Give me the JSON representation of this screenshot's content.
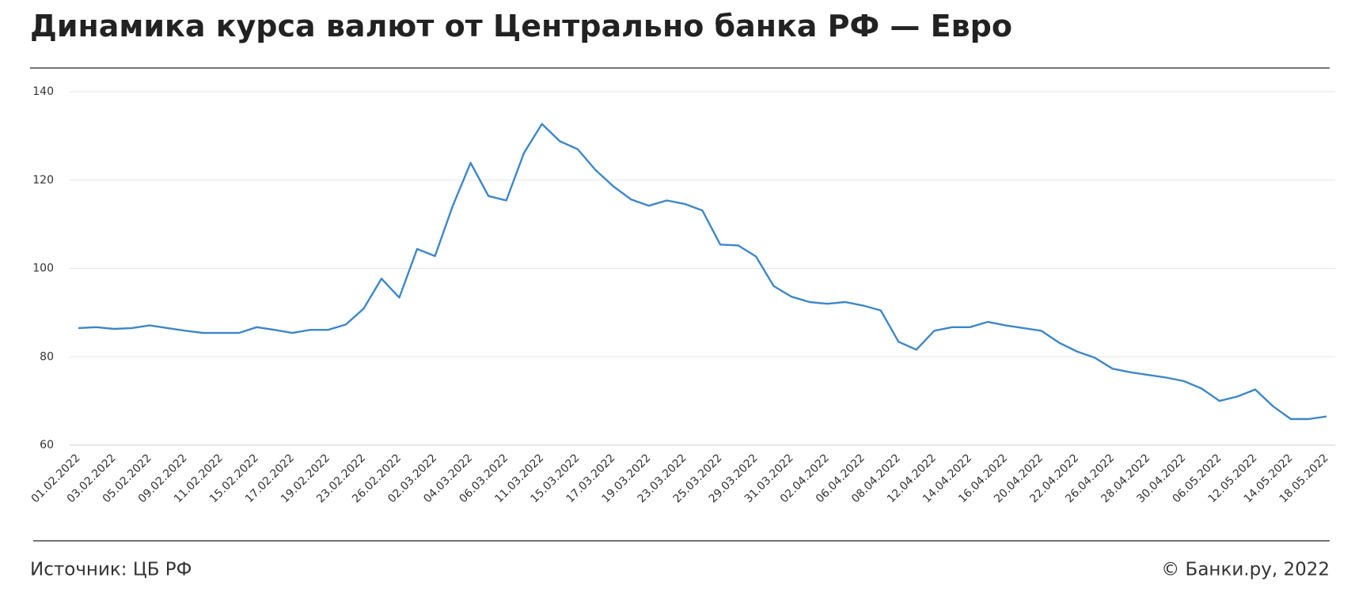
{
  "chart_data": {
    "type": "line",
    "title": "Динамика курса валют от Центрально банка РФ — Евро",
    "source": "Источник: ЦБ РФ",
    "credit": "© Банки.ру, 2022",
    "categories": [
      "01.02.2022",
      null,
      "03.02.2022",
      null,
      "05.02.2022",
      null,
      "09.02.2022",
      null,
      "11.02.2022",
      null,
      "15.02.2022",
      null,
      "17.02.2022",
      null,
      "19.02.2022",
      null,
      "23.02.2022",
      null,
      "26.02.2022",
      null,
      "02.03.2022",
      null,
      "04.03.2022",
      null,
      "06.03.2022",
      null,
      "11.03.2022",
      null,
      "15.03.2022",
      null,
      "17.03.2022",
      null,
      "19.03.2022",
      null,
      "23.03.2022",
      null,
      "25.03.2022",
      null,
      "29.03.2022",
      null,
      "31.03.2022",
      null,
      "02.04.2022",
      null,
      "06.04.2022",
      null,
      "08.04.2022",
      null,
      "12.04.2022",
      null,
      "14.04.2022",
      null,
      "16.04.2022",
      null,
      "20.04.2022",
      null,
      "22.04.2022",
      null,
      "26.04.2022",
      null,
      "28.04.2022",
      null,
      "30.04.2022",
      null,
      "06.05.2022",
      null,
      "12.05.2022",
      null,
      "14.05.2022",
      null,
      "18.05.2022"
    ],
    "values": [
      86.5,
      86.7,
      86.3,
      86.5,
      87.1,
      86.5,
      85.9,
      85.4,
      85.4,
      85.4,
      86.7,
      86.1,
      85.4,
      86.1,
      86.1,
      87.3,
      90.9,
      97.7,
      93.4,
      104.4,
      102.8,
      114.2,
      123.9,
      116.4,
      115.4,
      126.2,
      132.7,
      128.8,
      127.0,
      122.3,
      118.6,
      115.6,
      114.2,
      115.4,
      114.6,
      113.1,
      105.4,
      105.2,
      102.7,
      96.0,
      93.6,
      92.4,
      92.0,
      92.4,
      91.6,
      90.5,
      83.4,
      81.6,
      85.9,
      86.7,
      86.7,
      87.9,
      87.1,
      86.5,
      85.9,
      83.2,
      81.2,
      79.8,
      77.3,
      76.5,
      75.9,
      75.3,
      74.5,
      72.8,
      70.0,
      71.0,
      72.6,
      68.8,
      65.9,
      65.9,
      66.5
    ],
    "color": "#3d87c8",
    "ylim": [
      60,
      140
    ],
    "yticks": [
      60,
      80,
      100,
      120,
      140
    ],
    "grid": true
  }
}
